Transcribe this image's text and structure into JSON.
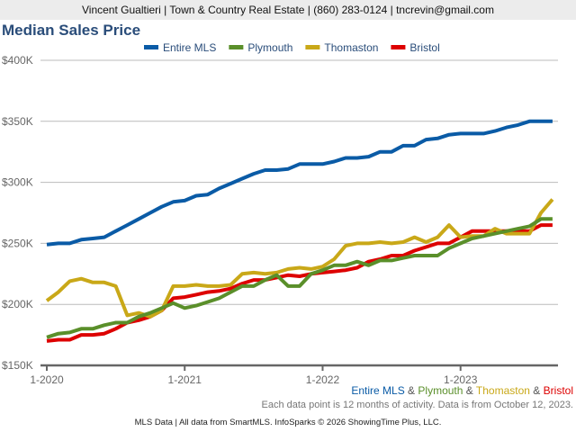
{
  "header": "Vincent Gualtieri | Town & Country Real Estate | (860) 283-0124 | tncrevin@gmail.com",
  "footer": "MLS Data | All data from SmartMLS. InfoSparks © 2026 ShowingTime Plus, LLC.",
  "note": "Each data point is 12 months of activity. Data is from October 12, 2023.",
  "amp": "&",
  "chart_data": {
    "type": "line",
    "title": "Median Sales Price",
    "xlabel": "",
    "ylabel": "",
    "ylim": [
      150000,
      400000
    ],
    "yticks": [
      150000,
      200000,
      250000,
      300000,
      350000,
      400000
    ],
    "ytick_labels": [
      "$150K",
      "$200K",
      "$250K",
      "$300K",
      "$350K",
      "$400K"
    ],
    "xtick_labels": [
      "1-2020",
      "1-2021",
      "1-2022",
      "1-2023"
    ],
    "xtick_index": [
      0,
      12,
      24,
      36
    ],
    "x_start": "1-2020",
    "x_end": "9-2023",
    "grid": true,
    "legend_position": "top-center",
    "series": [
      {
        "name": "Entire MLS",
        "color": "#0a5ba6",
        "values": [
          249,
          250,
          250,
          253,
          254,
          255,
          260,
          265,
          270,
          275,
          280,
          284,
          285,
          289,
          290,
          295,
          299,
          303,
          307,
          310,
          310,
          311,
          315,
          315,
          315,
          317,
          320,
          320,
          321,
          325,
          325,
          330,
          330,
          335,
          336,
          339,
          340,
          340,
          340,
          342,
          345,
          347,
          350,
          350,
          350
        ]
      },
      {
        "name": "Plymouth",
        "color": "#5a8f2a",
        "values": [
          173,
          176,
          177,
          180,
          180,
          183,
          185,
          185,
          190,
          193,
          197,
          201,
          197,
          199,
          202,
          205,
          210,
          215,
          215,
          220,
          224,
          215,
          215,
          225,
          228,
          232,
          232,
          235,
          232,
          236,
          236,
          238,
          240,
          240,
          240,
          246,
          250,
          254,
          256,
          258,
          260,
          262,
          264,
          270,
          270
        ]
      },
      {
        "name": "Thomaston",
        "color": "#c9a818",
        "values": [
          203,
          210,
          219,
          221,
          218,
          218,
          215,
          191,
          193,
          190,
          195,
          215,
          215,
          216,
          215,
          215,
          216,
          225,
          226,
          225,
          226,
          229,
          230,
          229,
          231,
          237,
          248,
          250,
          250,
          251,
          250,
          251,
          255,
          251,
          255,
          265,
          255,
          256,
          256,
          262,
          258,
          258,
          258,
          275,
          286
        ]
      },
      {
        "name": "Bristol",
        "color": "#dd0000",
        "values": [
          170,
          171,
          171,
          175,
          175,
          176,
          180,
          185,
          187,
          190,
          195,
          205,
          206,
          208,
          210,
          211,
          213,
          217,
          220,
          220,
          222,
          224,
          223,
          225,
          226,
          227,
          228,
          230,
          235,
          237,
          240,
          240,
          244,
          247,
          250,
          250,
          255,
          260,
          260,
          260,
          260,
          260,
          260,
          265,
          265
        ]
      }
    ],
    "value_units": "thousands USD"
  }
}
